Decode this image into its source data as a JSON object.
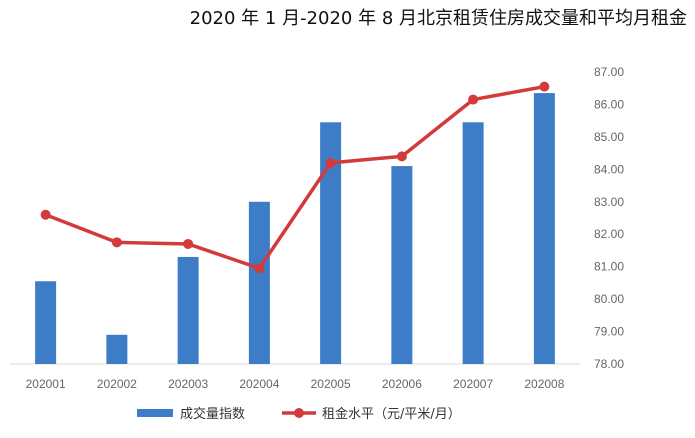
{
  "chart_data": {
    "type": "bar+line",
    "title": "2020 年 1 月-2020 年 8 月北京租赁住房成交量和平均月租金",
    "categories": [
      "202001",
      "202002",
      "202003",
      "202004",
      "202005",
      "202006",
      "202007",
      "202008"
    ],
    "series": [
      {
        "name": "成交量指数",
        "type": "bar",
        "color": "#3d7dc8",
        "values": [
          80.55,
          78.9,
          81.3,
          83.0,
          85.45,
          84.1,
          85.45,
          86.35
        ]
      },
      {
        "name": "租金水平（元/平米/月）",
        "type": "line",
        "color": "#d33b3b",
        "values": [
          82.6,
          81.75,
          81.7,
          80.95,
          84.2,
          84.4,
          86.15,
          86.55
        ]
      }
    ],
    "y_axis": {
      "position": "right",
      "ylim": [
        78.0,
        87.0
      ],
      "ticks": [
        "78.00",
        "79.00",
        "80.00",
        "81.00",
        "82.00",
        "83.00",
        "84.00",
        "85.00",
        "86.00",
        "87.00"
      ]
    },
    "grid": false,
    "legend_position": "bottom"
  }
}
